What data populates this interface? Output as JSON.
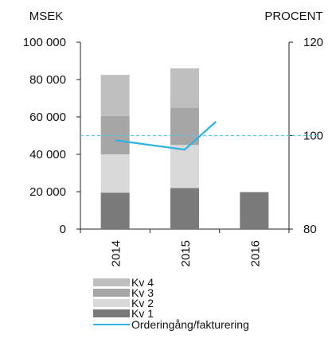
{
  "chart_data": {
    "type": "bar",
    "categories": [
      "2014",
      "2015",
      "2016"
    ],
    "y_left_label": "MSEK",
    "y_right_label": "PROCENT",
    "y_left_ticks": [
      "0",
      "20 000",
      "40 000",
      "60 000",
      "80 000",
      "100 000"
    ],
    "y_left_tick_values": [
      0,
      20000,
      40000,
      60000,
      80000,
      100000
    ],
    "y_left_lim": [
      0,
      100000
    ],
    "y_right_ticks": [
      "80",
      "100",
      "120"
    ],
    "y_right_tick_values": [
      80,
      100,
      120
    ],
    "y_right_lim": [
      80,
      120
    ],
    "stacked_series": [
      {
        "name": "Kv 1",
        "values": [
          19500,
          22000,
          19800
        ],
        "color": "#7a7a7a"
      },
      {
        "name": "Kv 2",
        "values": [
          20500,
          23000,
          null
        ],
        "color": "#d9d9d9"
      },
      {
        "name": "Kv 3",
        "values": [
          20500,
          20000,
          null
        ],
        "color": "#a6a6a6"
      },
      {
        "name": "Kv 4",
        "values": [
          22000,
          21000,
          null
        ],
        "color": "#bfbfbf"
      }
    ],
    "line_series": {
      "name": "Orderingång/fakturering",
      "axis": "right",
      "x": [
        "2014",
        "2015"
      ],
      "values": [
        99,
        97
      ],
      "extension_value": 103,
      "color": "#2bb3e3"
    },
    "reference_line": {
      "axis": "right",
      "value": 100,
      "style": "dashed",
      "color": "#5bc4e8"
    },
    "legend_position": "bottom-left",
    "grid": false
  }
}
